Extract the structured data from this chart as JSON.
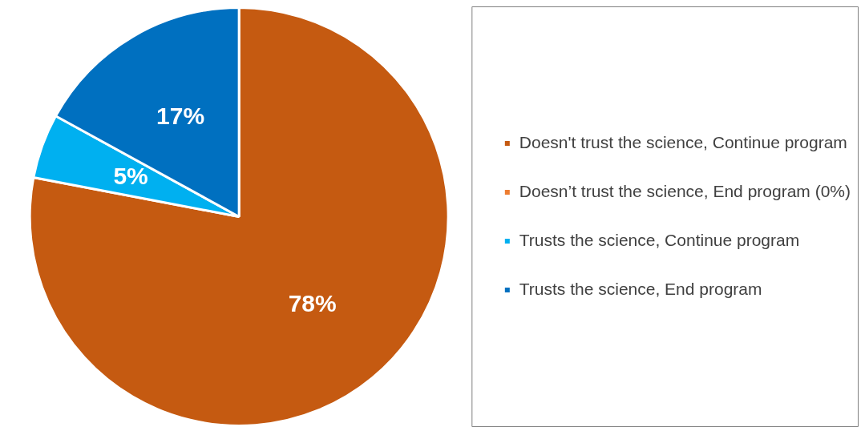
{
  "chart_data": {
    "type": "pie",
    "categories": [
      "Doesn't trust the science, Continue program",
      "Doesn’t trust the science, End program (0%)",
      "Trusts the science, Continue program",
      "Trusts the science, End program"
    ],
    "values": [
      78,
      0,
      5,
      17
    ],
    "colors": [
      "#c55a11",
      "#ed7d31",
      "#00b0f0",
      "#0070c0"
    ],
    "value_labels": [
      "78%",
      null,
      "5%",
      "17%"
    ],
    "legend": "right"
  }
}
